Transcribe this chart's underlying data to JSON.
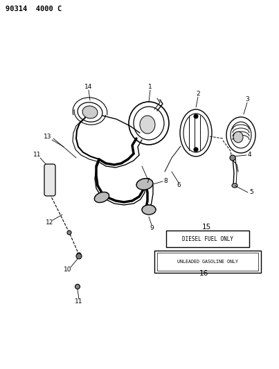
{
  "title": "90314  4000 C",
  "bg_color": "#ffffff",
  "box15_text": "DIESEL FUEL ONLY",
  "box16_text": "UNLEADED GASOLINE ONLY",
  "figsize": [
    4.03,
    5.33
  ],
  "dpi": 100
}
